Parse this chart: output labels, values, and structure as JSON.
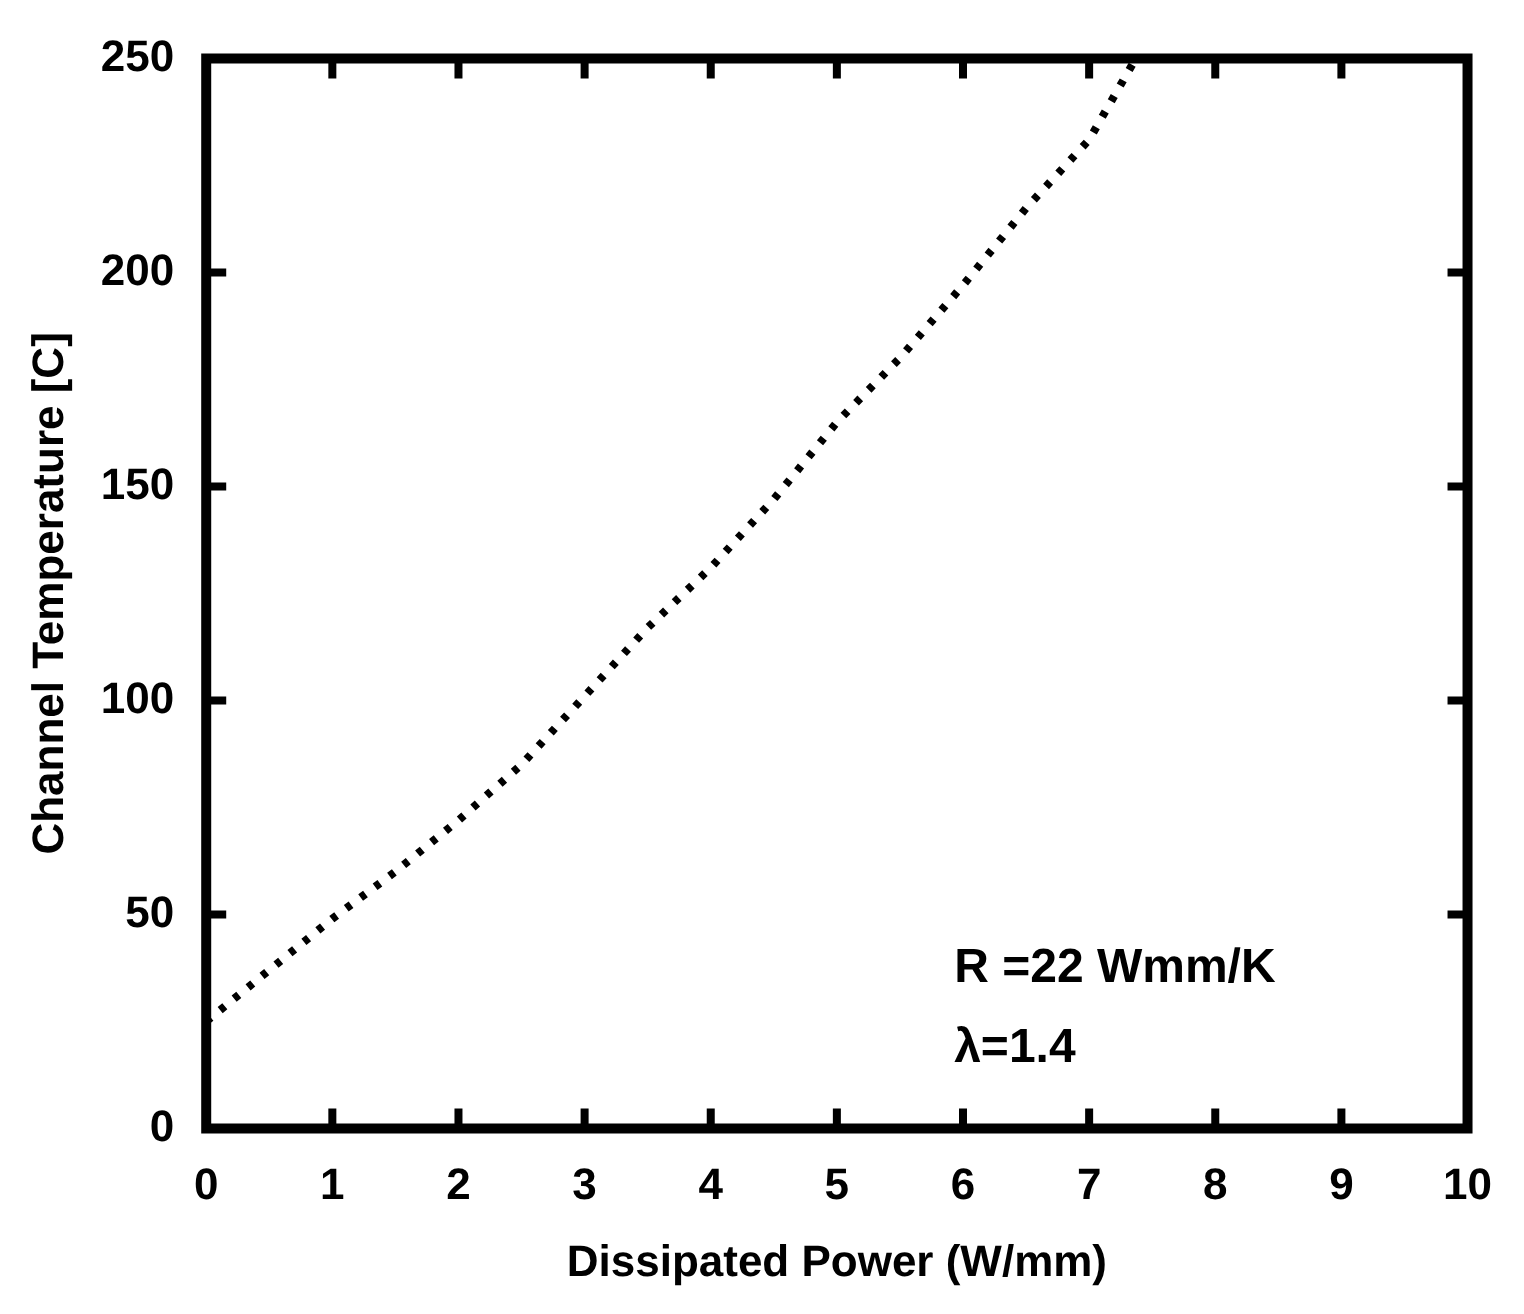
{
  "chart_data": {
    "type": "line",
    "xlabel": "Dissipated Power (W/mm)",
    "ylabel": "Channel Temperature [C]",
    "x": [
      0,
      0.5,
      1,
      1.5,
      2,
      2.5,
      3,
      3.5,
      4,
      4.5,
      5,
      5.5,
      6,
      6.5,
      7,
      7.37
    ],
    "series": [
      {
        "color": "#000000",
        "values": [
          25,
          37,
          49,
          60,
          72,
          85,
          101,
          117,
          131,
          147,
          165,
          180,
          197,
          215,
          231,
          250
        ]
      }
    ],
    "xlim": [
      0,
      10
    ],
    "ylim": [
      0,
      250
    ],
    "xticks": [
      0,
      1,
      2,
      3,
      4,
      5,
      6,
      7,
      8,
      9,
      10
    ],
    "yticks": [
      0,
      50,
      100,
      150,
      200,
      250
    ],
    "grid": false,
    "legend": false,
    "marker": "none",
    "line_style": "dotted",
    "annotations": [
      "R =22 Wmm/K",
      "λ=1.4"
    ]
  }
}
